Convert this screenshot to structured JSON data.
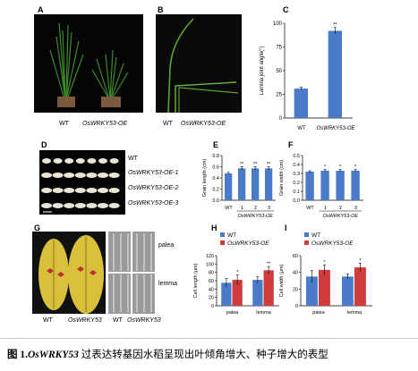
{
  "panels": {
    "a": {
      "letter": "A",
      "label_wt": "WT",
      "label_oe": "OsWRKY53-OE"
    },
    "b": {
      "letter": "B",
      "label_wt": "WT",
      "label_oe": "OsWRKY53-OE"
    },
    "c": {
      "letter": "C"
    },
    "d": {
      "letter": "D",
      "rows": [
        "WT",
        "OsWRKY53-OE-1",
        "OsWRKY53-OE-2",
        "OsWRKY53-OE-3"
      ]
    },
    "e": {
      "letter": "E"
    },
    "f": {
      "letter": "F"
    },
    "g": {
      "letter": "G",
      "label_wt": "WT",
      "label_mut": "OsWRKY53",
      "label_palea": "palea",
      "label_lemma": "lemma",
      "label_wt2": "WT",
      "label_mut2": "OsWRKY53"
    },
    "h": {
      "letter": "H"
    },
    "i": {
      "letter": "I"
    }
  },
  "chart_data": [
    {
      "id": "C",
      "type": "bar",
      "categories": [
        "WT",
        "OsWRKY53-OE"
      ],
      "values": [
        31,
        92
      ],
      "errors": [
        1.5,
        3.5
      ],
      "significance": [
        "",
        "**"
      ],
      "ylabel": "Lamina joint angle(°)",
      "ylim": [
        0,
        100
      ],
      "yticks": [
        0,
        25,
        50,
        75,
        100
      ],
      "color": "#4a7ac8"
    },
    {
      "id": "E",
      "type": "bar",
      "categories": [
        "WT",
        "1",
        "2",
        "3"
      ],
      "values": [
        0.48,
        0.57,
        0.57,
        0.57
      ],
      "errors": [
        0.02,
        0.03,
        0.03,
        0.03
      ],
      "significance": [
        "",
        "**",
        "**",
        "**"
      ],
      "ylabel": "Grain length (cm)",
      "xgroup_label": "OsWRKY53-OE",
      "ylim": [
        0,
        0.8
      ],
      "yticks": [
        0,
        0.2,
        0.4,
        0.6,
        0.8
      ],
      "color": "#4a7ac8"
    },
    {
      "id": "F",
      "type": "bar",
      "categories": [
        "WT",
        "1",
        "2",
        "3"
      ],
      "values": [
        0.32,
        0.33,
        0.33,
        0.33
      ],
      "errors": [
        0.01,
        0.015,
        0.015,
        0.015
      ],
      "significance": [
        "",
        "*",
        "*",
        "*"
      ],
      "ylabel": "Grain width (cm)",
      "xgroup_label": "OsWRKY53-OE",
      "ylim": [
        0,
        0.5
      ],
      "yticks": [
        0,
        0.1,
        0.2,
        0.3,
        0.4,
        0.5
      ],
      "color": "#4a7ac8"
    },
    {
      "id": "H",
      "type": "bar",
      "categories": [
        "palea",
        "lemma"
      ],
      "series": [
        {
          "name": "WT",
          "values": [
            55,
            62
          ],
          "errors": [
            10,
            8
          ],
          "color": "#4a7ac8"
        },
        {
          "name": "OsWRKY53-OE",
          "values": [
            62,
            85
          ],
          "errors": [
            12,
            9
          ],
          "color": "#d03c3c"
        }
      ],
      "significance": [
        [
          "",
          "*"
        ],
        [
          "",
          "**"
        ]
      ],
      "ylabel": "Cell length (μm)",
      "ylim": [
        0,
        120
      ],
      "yticks": [
        0,
        20,
        40,
        60,
        80,
        100,
        120
      ],
      "legend": "top-left"
    },
    {
      "id": "I",
      "type": "bar",
      "categories": [
        "palea",
        "lemma"
      ],
      "series": [
        {
          "name": "WT",
          "values": [
            35,
            35
          ],
          "errors": [
            7,
            3
          ],
          "color": "#4a7ac8"
        },
        {
          "name": "OsWRKY53-OE",
          "values": [
            43,
            46
          ],
          "errors": [
            6,
            5
          ],
          "color": "#d03c3c"
        }
      ],
      "significance": [
        [
          "",
          "*"
        ],
        [
          "",
          "*"
        ]
      ],
      "ylabel": "Cell width (μm)",
      "ylim": [
        0,
        60
      ],
      "yticks": [
        0,
        20,
        40,
        60
      ],
      "legend": "top-left"
    }
  ],
  "caption": {
    "fig": "图 1.",
    "gene": "OsWRKY53",
    "text": " 过表达转基因水稻呈现出叶倾角增大、种子增大的表型"
  }
}
